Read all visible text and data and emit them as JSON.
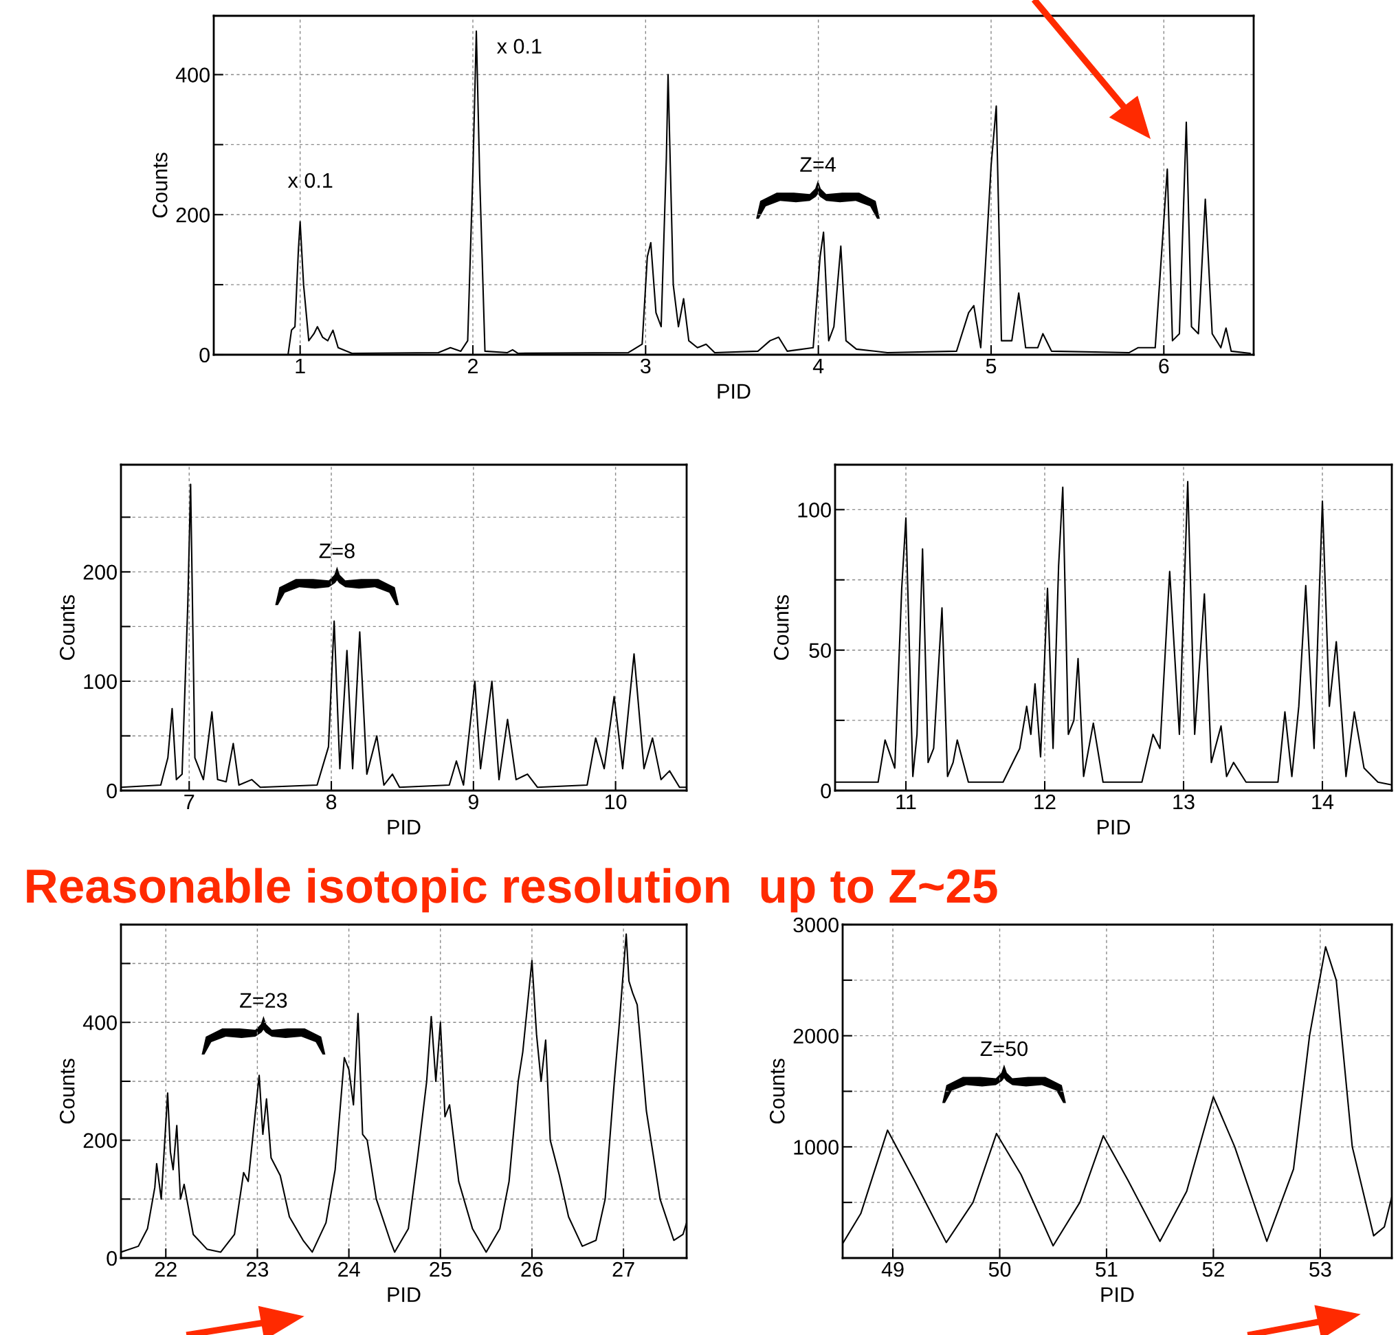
{
  "chart_data": [
    {
      "type": "line",
      "xlabel": "PID",
      "ylabel": "Counts",
      "xlim": [
        0.5,
        6.52
      ],
      "ylim": [
        0,
        484
      ],
      "xticks": [
        1,
        2,
        3,
        4,
        5,
        6
      ],
      "yticks": [
        0,
        {
          "value": 100,
          "label": null
        },
        200,
        {
          "value": 300,
          "label": null
        },
        400
      ],
      "grid": true,
      "legend": false,
      "x": [
        0.93,
        0.95,
        0.97,
        0.99,
        1.0,
        1.02,
        1.05,
        1.08,
        1.1,
        1.13,
        1.16,
        1.19,
        1.22,
        1.3,
        1.8,
        1.87,
        1.93,
        1.97,
        2.0,
        2.02,
        2.04,
        2.07,
        2.2,
        2.23,
        2.26,
        2.9,
        2.98,
        3.01,
        3.03,
        3.06,
        3.09,
        3.12,
        3.13,
        3.16,
        3.19,
        3.22,
        3.25,
        3.3,
        3.35,
        3.4,
        3.65,
        3.72,
        3.77,
        3.82,
        3.97,
        4.01,
        4.03,
        4.06,
        4.09,
        4.13,
        4.16,
        4.22,
        4.4,
        4.8,
        4.87,
        4.9,
        4.94,
        5.0,
        5.03,
        5.06,
        5.12,
        5.16,
        5.2,
        5.27,
        5.3,
        5.35,
        5.8,
        5.85,
        5.95,
        6.02,
        6.05,
        6.09,
        6.13,
        6.16,
        6.2,
        6.24,
        6.28,
        6.33,
        6.36,
        6.39,
        6.5
      ],
      "series": [
        {
          "color": "#000000",
          "values": [
            0,
            35,
            40,
            150,
            190,
            100,
            20,
            30,
            40,
            25,
            20,
            35,
            10,
            2,
            3,
            10,
            5,
            20,
            260,
            462,
            250,
            5,
            3,
            7,
            2,
            3,
            15,
            140,
            160,
            60,
            40,
            280,
            400,
            100,
            40,
            80,
            20,
            10,
            15,
            3,
            5,
            20,
            25,
            5,
            10,
            140,
            175,
            20,
            40,
            155,
            20,
            8,
            3,
            5,
            60,
            70,
            10,
            270,
            355,
            20,
            20,
            88,
            10,
            10,
            30,
            5,
            3,
            10,
            10,
            265,
            20,
            30,
            332,
            40,
            30,
            222,
            30,
            10,
            38,
            5,
            2
          ]
        }
      ],
      "annotations": [
        "x 0.1",
        "x 0.1",
        "Z=4"
      ]
    },
    {
      "type": "line",
      "xlabel": "PID",
      "ylabel": "Counts",
      "xlim": [
        6.52,
        10.5
      ],
      "ylim": [
        0,
        298
      ],
      "xticks": [
        7,
        8,
        9,
        10
      ],
      "yticks": [
        0,
        {
          "value": 50,
          "label": null
        },
        100,
        {
          "value": 150,
          "label": null
        },
        200,
        {
          "value": 250,
          "label": null
        }
      ],
      "grid": true,
      "legend": false,
      "x": [
        6.52,
        6.8,
        6.85,
        6.88,
        6.91,
        6.95,
        6.99,
        7.01,
        7.04,
        7.1,
        7.16,
        7.2,
        7.26,
        7.31,
        7.35,
        7.44,
        7.5,
        7.9,
        7.98,
        8.02,
        8.06,
        8.11,
        8.15,
        8.2,
        8.25,
        8.32,
        8.37,
        8.43,
        8.48,
        8.83,
        8.88,
        8.93,
        9.01,
        9.05,
        9.13,
        9.18,
        9.24,
        9.3,
        9.38,
        9.45,
        9.8,
        9.86,
        9.92,
        9.99,
        10.05,
        10.13,
        10.2,
        10.26,
        10.32,
        10.38,
        10.45,
        10.5
      ],
      "series": [
        {
          "color": "#000000",
          "values": [
            3,
            5,
            30,
            75,
            10,
            15,
            170,
            280,
            30,
            10,
            72,
            10,
            8,
            43,
            5,
            10,
            3,
            5,
            40,
            155,
            20,
            128,
            20,
            145,
            15,
            50,
            5,
            15,
            3,
            5,
            27,
            5,
            100,
            20,
            100,
            10,
            65,
            10,
            15,
            3,
            5,
            48,
            20,
            86,
            20,
            125,
            20,
            48,
            10,
            18,
            3,
            3
          ]
        }
      ],
      "annotations": [
        "Z=8",
        "Reasonable isotopic resolution  up to Z~25"
      ]
    },
    {
      "type": "line",
      "xlabel": "PID",
      "ylabel": "Counts",
      "xlim": [
        10.49,
        14.5
      ],
      "ylim": [
        0,
        116
      ],
      "xticks": [
        11,
        12,
        13,
        14
      ],
      "yticks": [
        0,
        {
          "value": 25,
          "label": null
        },
        50,
        {
          "value": 75,
          "label": null
        },
        100
      ],
      "grid": true,
      "legend": false,
      "x": [
        10.49,
        10.8,
        10.85,
        10.92,
        10.97,
        11.0,
        11.02,
        11.05,
        11.08,
        11.12,
        11.16,
        11.2,
        11.26,
        11.3,
        11.34,
        11.37,
        11.45,
        11.7,
        11.82,
        11.87,
        11.9,
        11.93,
        11.97,
        12.02,
        12.06,
        12.1,
        12.13,
        12.17,
        12.21,
        12.24,
        12.28,
        12.35,
        12.42,
        12.7,
        12.78,
        12.83,
        12.9,
        12.97,
        13.03,
        13.08,
        13.15,
        13.2,
        13.27,
        13.31,
        13.36,
        13.45,
        13.68,
        13.73,
        13.78,
        13.83,
        13.88,
        13.94,
        14.0,
        14.05,
        14.1,
        14.17,
        14.23,
        14.3,
        14.4,
        14.5
      ],
      "series": [
        {
          "color": "#000000",
          "values": [
            3,
            3,
            18,
            8,
            72,
            97,
            60,
            5,
            20,
            86,
            10,
            15,
            65,
            5,
            10,
            18,
            3,
            3,
            15,
            30,
            20,
            38,
            12,
            72,
            15,
            80,
            108,
            20,
            25,
            47,
            5,
            24,
            3,
            3,
            20,
            15,
            78,
            20,
            110,
            20,
            70,
            10,
            23,
            5,
            10,
            3,
            3,
            28,
            5,
            30,
            73,
            15,
            103,
            30,
            53,
            5,
            28,
            8,
            3,
            2
          ]
        }
      ]
    },
    {
      "type": "line",
      "xlabel": "PID",
      "ylabel": "Counts",
      "xlim": [
        21.51,
        27.69
      ],
      "ylim": [
        0,
        566
      ],
      "xticks": [
        22,
        23,
        24,
        25,
        26,
        27
      ],
      "yticks": [
        0,
        {
          "value": 100,
          "label": null
        },
        200,
        {
          "value": 300,
          "label": null
        },
        400,
        {
          "value": 500,
          "label": null
        }
      ],
      "grid": true,
      "legend": false,
      "x": [
        21.51,
        21.7,
        21.8,
        21.88,
        21.9,
        21.95,
        22.02,
        22.05,
        22.08,
        22.12,
        22.16,
        22.2,
        22.3,
        22.45,
        22.6,
        22.75,
        22.85,
        22.9,
        23.02,
        23.06,
        23.1,
        23.15,
        23.25,
        23.35,
        23.5,
        23.6,
        23.75,
        23.85,
        23.95,
        24.0,
        24.05,
        24.1,
        24.15,
        24.2,
        24.3,
        24.45,
        24.5,
        24.65,
        24.75,
        24.85,
        24.9,
        24.95,
        25.0,
        25.05,
        25.1,
        25.2,
        25.35,
        25.5,
        25.65,
        25.75,
        25.85,
        25.9,
        26.0,
        26.05,
        26.1,
        26.15,
        26.2,
        26.3,
        26.4,
        26.55,
        26.7,
        26.8,
        26.9,
        26.95,
        27.03,
        27.06,
        27.1,
        27.15,
        27.25,
        27.4,
        27.55,
        27.65,
        27.69
      ],
      "series": [
        {
          "color": "#000000",
          "values": [
            10,
            20,
            50,
            120,
            160,
            100,
            280,
            180,
            150,
            225,
            100,
            125,
            40,
            15,
            10,
            40,
            145,
            130,
            310,
            210,
            270,
            170,
            140,
            70,
            30,
            10,
            60,
            150,
            340,
            320,
            260,
            415,
            210,
            200,
            100,
            30,
            10,
            50,
            170,
            300,
            410,
            300,
            400,
            240,
            260,
            130,
            50,
            10,
            50,
            130,
            300,
            350,
            505,
            380,
            300,
            370,
            200,
            140,
            70,
            20,
            30,
            100,
            300,
            390,
            550,
            470,
            450,
            430,
            250,
            100,
            30,
            40,
            60
          ]
        }
      ],
      "annotations": [
        "Z=23"
      ]
    },
    {
      "type": "line",
      "xlabel": "PID",
      "ylabel": "Counts",
      "xlim": [
        48.53,
        53.67
      ],
      "ylim": [
        0,
        3000
      ],
      "xticks": [
        49,
        50,
        51,
        52,
        53
      ],
      "yticks": [
        {
          "value": 500,
          "label": null
        },
        1000,
        {
          "value": 1500,
          "label": null
        },
        2000,
        {
          "value": 2500,
          "label": null
        },
        3000
      ],
      "grid": true,
      "legend": false,
      "x": [
        48.53,
        48.7,
        48.95,
        49.2,
        49.5,
        49.75,
        49.97,
        50.2,
        50.5,
        50.75,
        50.97,
        51.2,
        51.5,
        51.75,
        52.0,
        52.2,
        52.5,
        52.75,
        52.9,
        53.05,
        53.15,
        53.3,
        53.5,
        53.6,
        53.67
      ],
      "series": [
        {
          "color": "#000000",
          "values": [
            130,
            400,
            1150,
            700,
            140,
            500,
            1120,
            750,
            110,
            500,
            1100,
            700,
            150,
            600,
            1450,
            1000,
            150,
            800,
            2000,
            2800,
            2500,
            1000,
            200,
            280,
            550
          ]
        }
      ],
      "annotations": [
        "Z=50"
      ]
    }
  ]
}
